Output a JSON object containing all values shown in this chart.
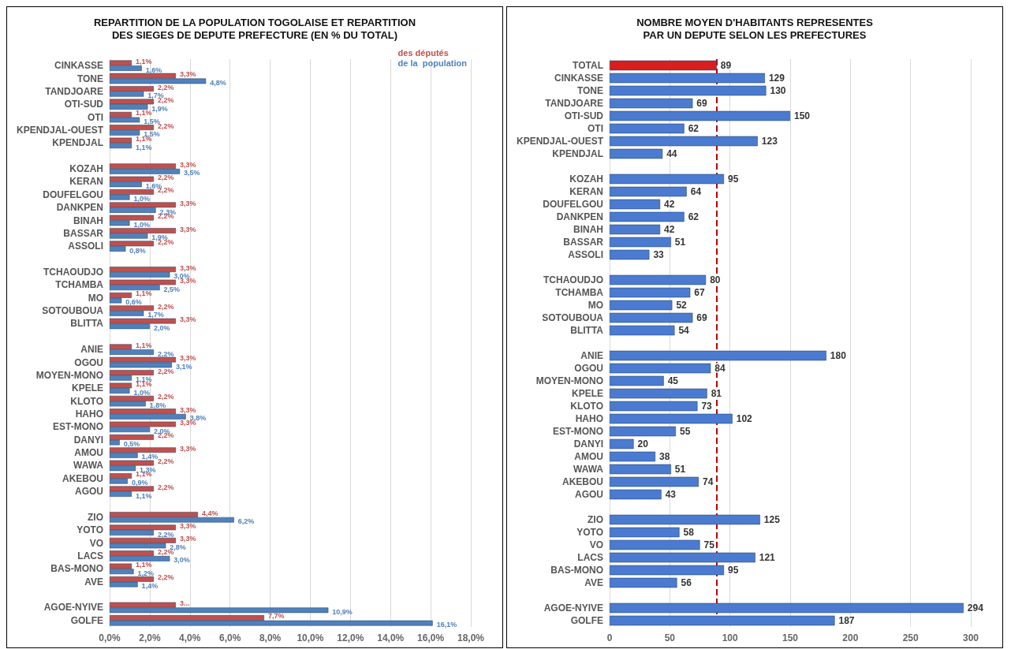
{
  "chart_data": [
    {
      "type": "bar",
      "orientation": "horizontal",
      "title": "REPARTITION DE LA POPULATION TOGOLAISE ET REPARTITION\nDES SIEGES DE DEPUTE PREFECTURE (EN % DU TOTAL)",
      "categories": [
        "CINKASSE",
        "TONE",
        "TANDJOARE",
        "OTI-SUD",
        "OTI",
        "KPENDJAL-OUEST",
        "KPENDJAL",
        null,
        "KOZAH",
        "KERAN",
        "DOUFELGOU",
        "DANKPEN",
        "BINAH",
        "BASSAR",
        "ASSOLI",
        null,
        "TCHAOUDJO",
        "TCHAMBA",
        "MO",
        "SOTOUBOUA",
        "BLITTA",
        null,
        "ANIE",
        "OGOU",
        "MOYEN-MONO",
        "KPELE",
        "KLOTO",
        "HAHO",
        "EST-MONO",
        "DANYI",
        "AMOU",
        "WAWA",
        "AKEBOU",
        "AGOU",
        null,
        "ZIO",
        "YOTO",
        "VO",
        "LACS",
        "BAS-MONO",
        "AVE",
        null,
        "AGOE-NYIVE",
        "GOLFE"
      ],
      "series": [
        {
          "name": "des députés",
          "color": "#c0504d",
          "values": [
            1.1,
            3.3,
            2.2,
            2.2,
            1.1,
            2.2,
            1.1,
            null,
            3.3,
            2.2,
            2.2,
            3.3,
            2.2,
            3.3,
            2.2,
            null,
            3.3,
            3.3,
            1.1,
            2.2,
            3.3,
            null,
            1.1,
            3.3,
            2.2,
            1.1,
            2.2,
            3.3,
            3.3,
            2.2,
            3.3,
            2.2,
            1.1,
            2.2,
            null,
            4.4,
            3.3,
            3.3,
            2.2,
            1.1,
            2.2,
            null,
            3.3,
            7.7
          ],
          "value_labels": [
            "1,1%",
            "3,3%",
            "2,2%",
            "2,2%",
            "1,1%",
            "2,2%",
            "1,1%",
            null,
            "3,3%",
            "2,2%",
            "2,2%",
            "3,3%",
            "2,2%",
            "3,3%",
            "2,2%",
            null,
            "3,3%",
            "3,3%",
            "1,1%",
            "2,2%",
            "3,3%",
            null,
            "1,1%",
            "3,3%",
            "2,2%",
            "1,1%",
            "2,2%",
            "3,3%",
            "3,3%",
            "2,2%",
            "3,3%",
            "2,2%",
            "1,1%",
            "2,2%",
            null,
            "4,4%",
            "3,3%",
            "3,3%",
            "2,2%",
            "1,1%",
            "2,2%",
            null,
            "3...",
            "7,7%"
          ]
        },
        {
          "name": "de la  population",
          "color": "#4f81bd",
          "values": [
            1.6,
            4.8,
            1.7,
            1.9,
            1.5,
            1.5,
            1.1,
            null,
            3.5,
            1.6,
            1.0,
            2.3,
            1.0,
            1.9,
            0.8,
            null,
            3.0,
            2.5,
            0.6,
            1.7,
            2.0,
            null,
            2.2,
            3.1,
            1.1,
            1.0,
            1.8,
            3.8,
            2.0,
            0.5,
            1.4,
            1.3,
            0.9,
            1.1,
            null,
            6.2,
            2.2,
            2.8,
            3.0,
            1.2,
            1.4,
            null,
            10.9,
            16.1
          ],
          "value_labels": [
            "1,6%",
            "4,8%",
            "1,7%",
            "1,9%",
            "1,5%",
            "1,5%",
            "1,1%",
            null,
            "3,5%",
            "1,6%",
            "1,0%",
            "2,3%",
            "1,0%",
            "1,9%",
            "0,8%",
            null,
            "3,0%",
            "2,5%",
            "0,6%",
            "1,7%",
            "2,0%",
            null,
            "2,2%",
            "3,1%",
            "1,1%",
            "1,0%",
            "1,8%",
            "3,8%",
            "2,0%",
            "0,5%",
            "1,4%",
            "1,3%",
            "0,9%",
            "1,1%",
            null,
            "6,2%",
            "2,2%",
            "2,8%",
            "3,0%",
            "1,2%",
            "1,4%",
            null,
            "10,9%",
            "16,1%"
          ]
        }
      ],
      "xlim": [
        0,
        18
      ],
      "xticks": [
        {
          "value": 0,
          "label": "0,0%"
        },
        {
          "value": 2,
          "label": "2,0%"
        },
        {
          "value": 4,
          "label": "4,0%"
        },
        {
          "value": 6,
          "label": "6,0%"
        },
        {
          "value": 8,
          "label": "8,0%"
        },
        {
          "value": 10,
          "label": "10,0%"
        },
        {
          "value": 12,
          "label": "12,0%"
        },
        {
          "value": 14,
          "label": "14,0%"
        },
        {
          "value": 16,
          "label": "16,0%"
        },
        {
          "value": 18,
          "label": "18,0%"
        }
      ],
      "grid": "x",
      "legend": "top right"
    },
    {
      "type": "bar",
      "orientation": "horizontal",
      "title": "NOMBRE MOYEN D'HABITANTS REPRESENTES\nPAR UN DEPUTE SELON LES PREFECTURES",
      "categories": [
        "TOTAL",
        "CINKASSE",
        "TONE",
        "TANDJOARE",
        "OTI-SUD",
        "OTI",
        "KPENDJAL-OUEST",
        "KPENDJAL",
        null,
        "KOZAH",
        "KERAN",
        "DOUFELGOU",
        "DANKPEN",
        "BINAH",
        "BASSAR",
        "ASSOLI",
        null,
        "TCHAOUDJO",
        "TCHAMBA",
        "MO",
        "SOTOUBOUA",
        "BLITTA",
        null,
        "ANIE",
        "OGOU",
        "MOYEN-MONO",
        "KPELE",
        "KLOTO",
        "HAHO",
        "EST-MONO",
        "DANYI",
        "AMOU",
        "WAWA",
        "AKEBOU",
        "AGOU",
        null,
        "ZIO",
        "YOTO",
        "VO",
        "LACS",
        "BAS-MONO",
        "AVE",
        null,
        "AGOE-NYIVE",
        "GOLFE"
      ],
      "values": [
        89,
        129,
        130,
        69,
        150,
        62,
        123,
        44,
        null,
        95,
        64,
        42,
        62,
        42,
        51,
        33,
        null,
        80,
        67,
        52,
        69,
        54,
        null,
        180,
        84,
        45,
        81,
        73,
        102,
        55,
        20,
        38,
        51,
        74,
        43,
        null,
        125,
        58,
        75,
        121,
        95,
        56,
        null,
        294,
        187
      ],
      "colors": [
        "#d81e1e",
        "#4a7bd0",
        "#4a7bd0",
        "#4a7bd0",
        "#4a7bd0",
        "#4a7bd0",
        "#4a7bd0",
        "#4a7bd0",
        "#4a7bd0",
        "#4a7bd0",
        "#4a7bd0",
        "#4a7bd0",
        "#4a7bd0",
        "#4a7bd0",
        "#4a7bd0",
        "#4a7bd0",
        "#4a7bd0",
        "#4a7bd0",
        "#4a7bd0",
        "#4a7bd0",
        "#4a7bd0",
        "#4a7bd0",
        "#4a7bd0",
        "#4a7bd0",
        "#4a7bd0",
        "#4a7bd0",
        "#4a7bd0",
        "#4a7bd0",
        "#4a7bd0",
        "#4a7bd0",
        "#4a7bd0",
        "#4a7bd0",
        "#4a7bd0",
        "#4a7bd0",
        "#4a7bd0",
        "#4a7bd0",
        "#4a7bd0",
        "#4a7bd0",
        "#4a7bd0",
        "#4a7bd0",
        "#4a7bd0",
        "#4a7bd0",
        "#4a7bd0",
        "#4a7bd0",
        "#4a7bd0"
      ],
      "data_labels": true,
      "xlim": [
        0,
        300
      ],
      "xticks": [
        0,
        50,
        100,
        150,
        200,
        250,
        300
      ],
      "ref_lines": [
        {
          "axis": "x",
          "value": 89,
          "color": "#c00000",
          "line_style": "dashed"
        }
      ],
      "grid": "x"
    }
  ]
}
